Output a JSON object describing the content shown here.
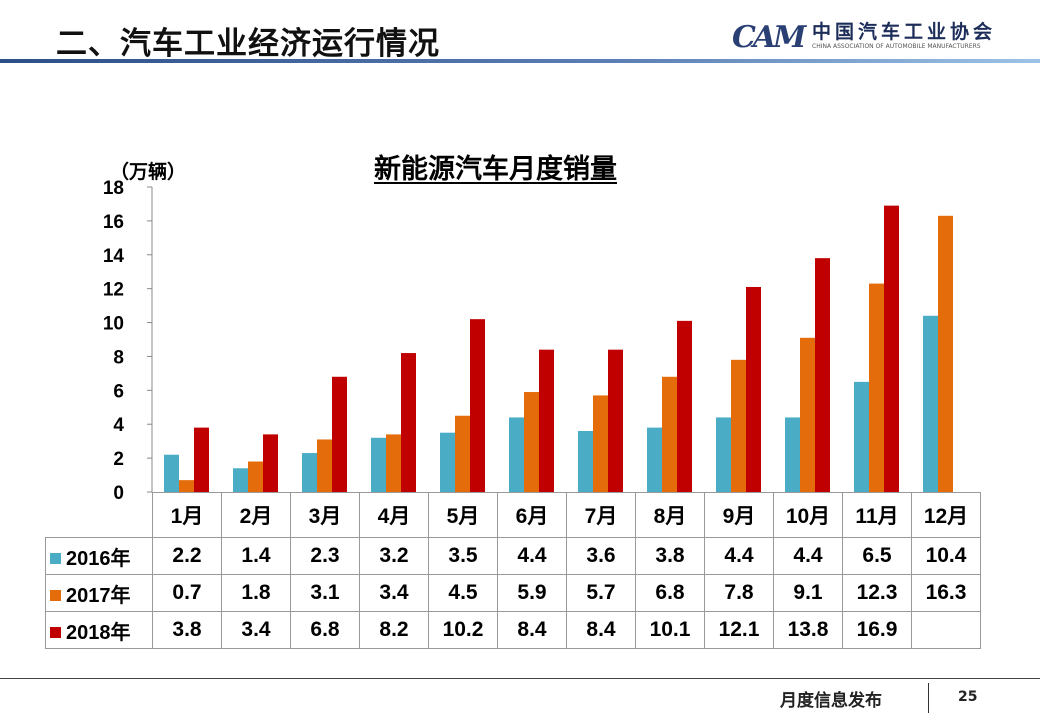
{
  "header": {
    "title": "二、汽车工业经济运行情况",
    "logo_mark": "CAM",
    "logo_cn": "中国汽车工业协会",
    "logo_en": "CHINA ASSOCIATION OF AUTOMOBILE MANUFACTURERS"
  },
  "footer": {
    "text": "月度信息发布",
    "page": "25"
  },
  "chart_data": {
    "type": "bar",
    "title": "新能源汽车月度销量",
    "ylabel": "（万辆）",
    "xlabel": "",
    "ylim": [
      0,
      18
    ],
    "yticks": [
      "0",
      "2",
      "4",
      "6",
      "8",
      "10",
      "12",
      "14",
      "16",
      "18"
    ],
    "categories": [
      "1月",
      "2月",
      "3月",
      "4月",
      "5月",
      "6月",
      "7月",
      "8月",
      "9月",
      "10月",
      "11月",
      "12月"
    ],
    "series": [
      {
        "name": "2016年",
        "color": "#4bacc6",
        "values": [
          2.2,
          1.4,
          2.3,
          3.2,
          3.5,
          4.4,
          3.6,
          3.8,
          4.4,
          4.4,
          6.5,
          10.4
        ],
        "labels": [
          "2.2",
          "1.4",
          "2.3",
          "3.2",
          "3.5",
          "4.4",
          "3.6",
          "3.8",
          "4.4",
          "4.4",
          "6.5",
          "10.4"
        ]
      },
      {
        "name": "2017年",
        "color": "#e46c0a",
        "values": [
          0.7,
          1.8,
          3.1,
          3.4,
          4.5,
          5.9,
          5.7,
          6.8,
          7.8,
          9.1,
          12.3,
          16.3
        ],
        "labels": [
          "0.7",
          "1.8",
          "3.1",
          "3.4",
          "4.5",
          "5.9",
          "5.7",
          "6.8",
          "7.8",
          "9.1",
          "12.3",
          "16.3"
        ]
      },
      {
        "name": "2018年",
        "color": "#c00000",
        "values": [
          3.8,
          3.4,
          6.8,
          8.2,
          10.2,
          8.4,
          8.4,
          10.1,
          12.1,
          13.8,
          16.9,
          null
        ],
        "labels": [
          "3.8",
          "3.4",
          "6.8",
          "8.2",
          "10.2",
          "8.4",
          "8.4",
          "10.1",
          "12.1",
          "13.8",
          "16.9",
          ""
        ]
      }
    ],
    "legend": "data-table"
  }
}
